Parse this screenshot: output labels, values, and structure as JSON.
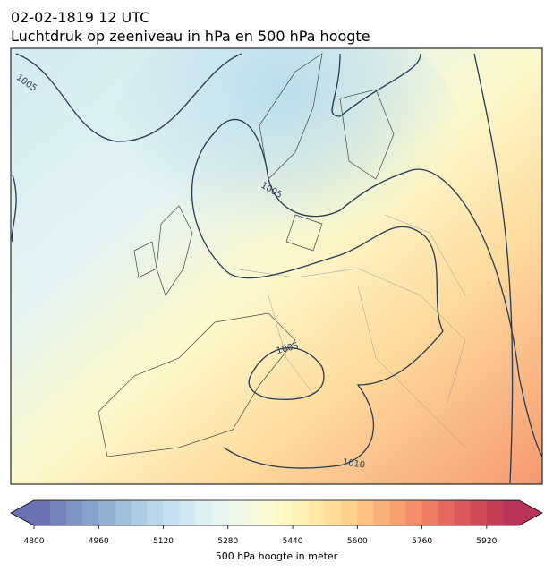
{
  "title": {
    "line1": "02-02-1819 12 UTC",
    "line2": "Luchtdruk op zeeniveau in hPa en 500 hPa hoogte"
  },
  "map": {
    "contour_labels": [
      "1005",
      "1005",
      "1005",
      "1010"
    ]
  },
  "colorbar": {
    "label": "500 hPa hoogte in meter",
    "range": [
      4800,
      6000
    ],
    "ticks": [
      4800,
      4960,
      5120,
      5280,
      5440,
      5600,
      5760,
      5920
    ],
    "colors": [
      "#6b72b3",
      "#7482bb",
      "#7e92c3",
      "#89a2cb",
      "#94b1d3",
      "#a0bfda",
      "#acccE1",
      "#b8d7e8",
      "#c4e0ee",
      "#d0e8f1",
      "#dcf0f4",
      "#e6f5f2",
      "#eef8e8",
      "#f5fadc",
      "#fafbd0",
      "#fdf8c2",
      "#fff1b3",
      "#ffe8a5",
      "#ffdd98",
      "#fed08b",
      "#fdc081",
      "#fbb078",
      "#f89f70",
      "#f48d69",
      "#ee7b63",
      "#e6695e",
      "#dc585a",
      "#d04958",
      "#c43d57",
      "#b83559"
    ]
  }
}
